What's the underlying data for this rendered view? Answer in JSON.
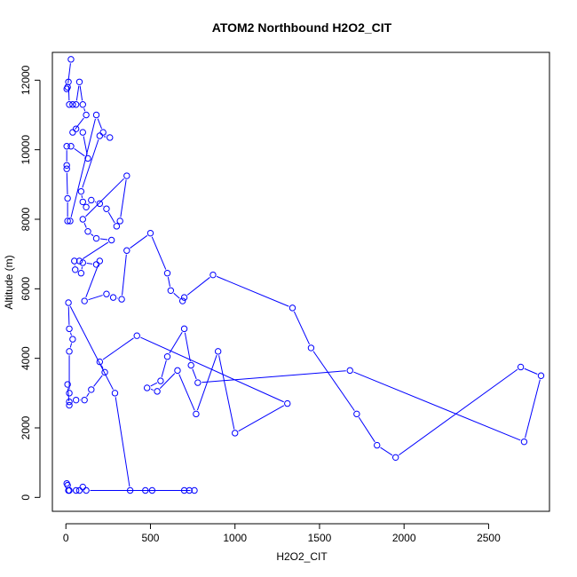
{
  "chart_data": {
    "type": "line",
    "title": "ATOM2 Northbound H2O2_CIT",
    "xlabel": "H2O2_CIT",
    "ylabel": "Altitude (m)",
    "xlim": [
      -80,
      2860
    ],
    "ylim": [
      -400,
      12800
    ],
    "x_ticks": [
      0,
      500,
      1000,
      1500,
      2000,
      2500
    ],
    "y_ticks": [
      0,
      2000,
      4000,
      6000,
      8000,
      10000,
      12000
    ],
    "grid": false,
    "legend": "none",
    "marker": "open-circle",
    "colors": {
      "series": "#0000ff",
      "axis": "#000000",
      "background": "#ffffff"
    },
    "series": [
      {
        "points": [
          [
            30,
            12600
          ],
          [
            10,
            11800
          ],
          [
            5,
            11750
          ],
          [
            15,
            11950
          ],
          [
            20,
            11300
          ],
          [
            40,
            11300
          ],
          [
            60,
            11300
          ],
          [
            80,
            11950
          ],
          [
            100,
            11300
          ],
          [
            120,
            11000
          ],
          [
            40,
            10500
          ],
          [
            60,
            10600
          ],
          [
            100,
            10500
          ],
          [
            130,
            9750
          ],
          [
            30,
            10100
          ],
          [
            5,
            10100
          ],
          [
            5,
            9550
          ],
          [
            5,
            9450
          ],
          [
            10,
            8600
          ],
          [
            10,
            7950
          ],
          [
            25,
            7950
          ],
          [
            180,
            11000
          ],
          [
            220,
            10500
          ],
          [
            260,
            10350
          ],
          [
            200,
            10400
          ],
          [
            90,
            8800
          ],
          [
            100,
            8500
          ],
          [
            120,
            8350
          ],
          [
            150,
            8550
          ],
          [
            200,
            8450
          ],
          [
            240,
            8300
          ],
          [
            300,
            7800
          ],
          [
            320,
            7950
          ],
          [
            360,
            9250
          ],
          [
            100,
            8000
          ],
          [
            130,
            7650
          ],
          [
            180,
            7450
          ],
          [
            270,
            7400
          ],
          [
            80,
            6800
          ],
          [
            50,
            6800
          ],
          [
            55,
            6550
          ],
          [
            90,
            6450
          ],
          [
            100,
            6750
          ],
          [
            180,
            6700
          ],
          [
            200,
            6800
          ],
          [
            110,
            5650
          ],
          [
            240,
            5850
          ],
          [
            280,
            5750
          ],
          [
            330,
            5700
          ],
          [
            360,
            7100
          ],
          [
            500,
            7600
          ],
          [
            600,
            6450
          ],
          [
            620,
            5950
          ],
          [
            690,
            5650
          ],
          [
            700,
            5750
          ],
          [
            870,
            6400
          ],
          [
            1340,
            5450
          ],
          [
            1450,
            4300
          ],
          [
            1720,
            2400
          ],
          [
            1840,
            1500
          ],
          [
            1950,
            1150
          ],
          [
            2690,
            3750
          ],
          [
            2810,
            3500
          ],
          [
            2710,
            1600
          ],
          [
            1680,
            3650
          ],
          [
            780,
            3300
          ],
          [
            740,
            3800
          ],
          [
            700,
            4850
          ],
          [
            600,
            4050
          ],
          [
            560,
            3350
          ],
          [
            480,
            3150
          ],
          [
            540,
            3050
          ],
          [
            660,
            3650
          ],
          [
            770,
            2400
          ],
          [
            900,
            4200
          ],
          [
            1000,
            1850
          ],
          [
            1310,
            2700
          ],
          [
            420,
            4650
          ],
          [
            200,
            3900
          ],
          [
            230,
            3600
          ],
          [
            150,
            3100
          ],
          [
            110,
            2800
          ],
          [
            60,
            2800
          ],
          [
            20,
            2750
          ],
          [
            20,
            2650
          ],
          [
            10,
            3250
          ],
          [
            20,
            3000
          ],
          [
            20,
            4200
          ],
          [
            40,
            4550
          ],
          [
            20,
            4850
          ],
          [
            15,
            5600
          ],
          [
            290,
            3000
          ],
          [
            380,
            200
          ],
          [
            470,
            200
          ],
          [
            510,
            200
          ],
          [
            700,
            200
          ],
          [
            730,
            200
          ],
          [
            760,
            200
          ],
          [
            120,
            200
          ],
          [
            100,
            300
          ],
          [
            80,
            200
          ],
          [
            60,
            200
          ],
          [
            20,
            200
          ],
          [
            15,
            200
          ],
          [
            10,
            350
          ],
          [
            5,
            400
          ]
        ]
      }
    ]
  }
}
